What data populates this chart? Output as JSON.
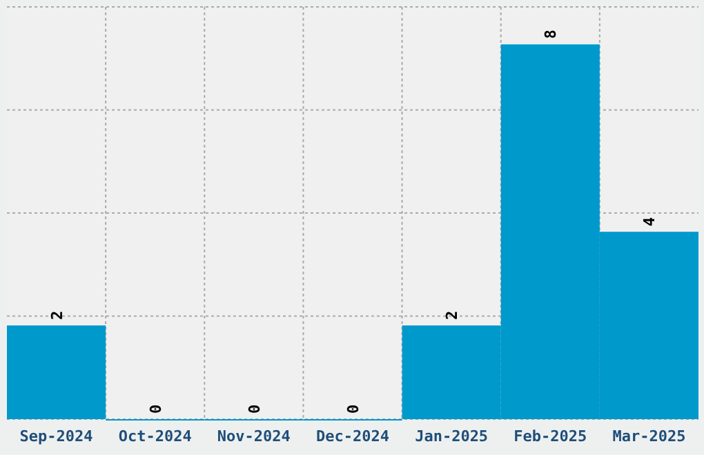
{
  "chart_data": {
    "type": "bar",
    "categories": [
      "Sep-2024",
      "Oct-2024",
      "Nov-2024",
      "Dec-2024",
      "Jan-2025",
      "Feb-2025",
      "Mar-2025"
    ],
    "values": [
      2,
      0,
      0,
      0,
      2,
      8,
      4
    ],
    "color": "#0099cc",
    "ylim": [
      0,
      8.8
    ],
    "yticks": [
      {
        "value": 0,
        "label": null
      },
      {
        "value": 2.2,
        "label": null
      },
      {
        "value": 4.4,
        "label": null
      },
      {
        "value": 6.6,
        "label": null
      },
      {
        "value": 8.8,
        "label": null
      }
    ],
    "tick_labels": "x",
    "grid": true,
    "data_labels": true
  }
}
